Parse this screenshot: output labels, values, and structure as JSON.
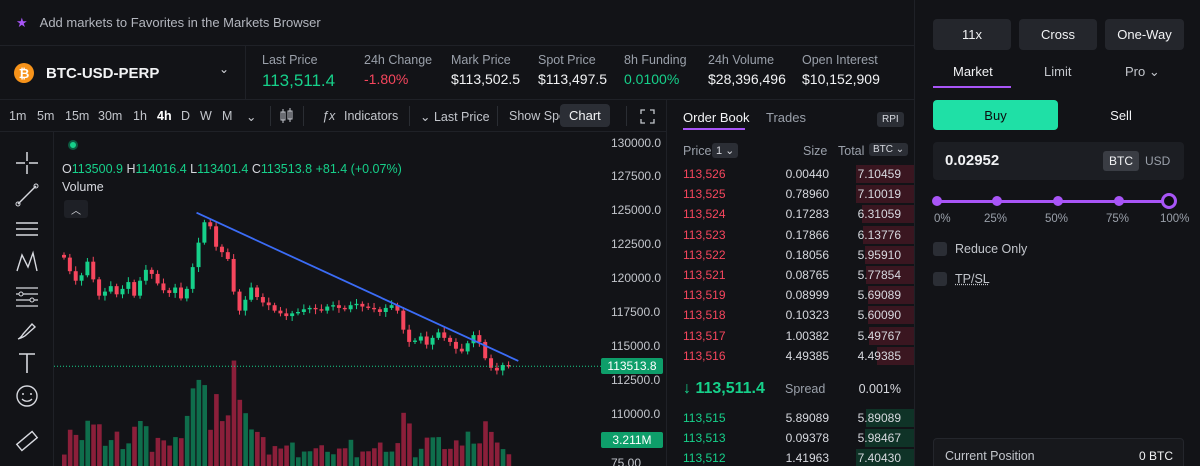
{
  "banner": {
    "text": "Add markets to Favorites in the Markets Browser",
    "icon": "star-icon"
  },
  "market": {
    "symbol": "BTC-USD-PERP",
    "coin_letter": "₿"
  },
  "stats": [
    {
      "label": "Last Price",
      "value": "113,511.4",
      "color": "#16d08a"
    },
    {
      "label": "24h Change",
      "value": "-1.80%",
      "color": "#f6465d"
    },
    {
      "label": "Mark Price",
      "value": "$113,502.5",
      "color": "#f2f3f5"
    },
    {
      "label": "Spot Price",
      "value": "$113,497.5",
      "color": "#f2f3f5"
    },
    {
      "label": "8h Funding",
      "value": "0.0100%",
      "color": "#16d08a"
    },
    {
      "label": "24h Volume",
      "value": "$28,396,496",
      "color": "#f2f3f5"
    },
    {
      "label": "Open Interest",
      "value": "$10,152,909",
      "color": "#f2f3f5"
    }
  ],
  "toolbar": {
    "timeframes": [
      "1m",
      "5m",
      "15m",
      "30m",
      "1h",
      "4h",
      "D",
      "W",
      "M"
    ],
    "active_timeframe": "4h",
    "indicators": "Indicators",
    "last_price": "Last Price",
    "show_spot": "Show Spo",
    "chart_tooltip": "Chart"
  },
  "ohlc": {
    "o_label": "O",
    "o": "113500.9",
    "h_label": "H",
    "h": "114016.4",
    "l_label": "L",
    "l": "113401.4",
    "c_label": "C",
    "c": "113513.8",
    "change": "+81.4 (+0.07%)",
    "volume_label": "Volume"
  },
  "y_axis": {
    "labels": [
      "130000.0",
      "127500.0",
      "125000.0",
      "122500.0",
      "120000.0",
      "117500.0",
      "115000.0",
      "112500.0",
      "110000.0",
      "75.00"
    ],
    "current_price": "113513.8",
    "current_volume": "3.211M"
  },
  "chart_data": {
    "type": "candlestick",
    "ylim": [
      110000,
      130000
    ],
    "closes": [
      121500,
      120500,
      119800,
      120200,
      121200,
      119900,
      118700,
      119000,
      119400,
      118800,
      119200,
      119700,
      118700,
      119800,
      120600,
      120300,
      119600,
      119100,
      118900,
      119300,
      118500,
      119200,
      120800,
      122600,
      124100,
      123800,
      122300,
      121900,
      121400,
      119000,
      117600,
      118400,
      119300,
      118600,
      118200,
      118000,
      117600,
      117400,
      117200,
      117400,
      117500,
      117700,
      117800,
      117700,
      117600,
      117900,
      118000,
      117800,
      117700,
      118000,
      118100,
      117900,
      117800,
      117700,
      117500,
      117800,
      118000,
      117600,
      116200,
      115300,
      115400,
      115700,
      115100,
      115600,
      116000,
      115600,
      115300,
      114800,
      114600,
      115200,
      115800,
      115300,
      114100,
      113400,
      113200,
      113600,
      113500
    ],
    "trendline": [
      [
        23,
        124800
      ],
      [
        78,
        113900
      ]
    ],
    "volume_ylim": [
      0,
      75
    ]
  },
  "orderbook": {
    "tabs": [
      "Order Book",
      "Trades"
    ],
    "active_tab": "Order Book",
    "rpi": "RPI",
    "price_header": "Price",
    "precision": "1",
    "size_header": "Size",
    "total_header": "Total",
    "total_unit": "BTC",
    "asks": [
      {
        "price": "113,526",
        "size": "0.00440",
        "total": "7.10459",
        "depth": 0.99
      },
      {
        "price": "113,525",
        "size": "0.78960",
        "total": "7.10019",
        "depth": 0.99
      },
      {
        "price": "113,524",
        "size": "0.17283",
        "total": "6.31059",
        "depth": 0.88
      },
      {
        "price": "113,523",
        "size": "0.17866",
        "total": "6.13776",
        "depth": 0.86
      },
      {
        "price": "113,522",
        "size": "0.18056",
        "total": "5.95910",
        "depth": 0.83
      },
      {
        "price": "113,521",
        "size": "0.08765",
        "total": "5.77854",
        "depth": 0.81
      },
      {
        "price": "113,519",
        "size": "0.08999",
        "total": "5.69089",
        "depth": 0.79
      },
      {
        "price": "113,518",
        "size": "0.10323",
        "total": "5.60090",
        "depth": 0.78
      },
      {
        "price": "113,517",
        "size": "1.00382",
        "total": "5.49767",
        "depth": 0.77
      },
      {
        "price": "113,516",
        "size": "4.49385",
        "total": "4.49385",
        "depth": 0.63
      }
    ],
    "mid_price": "113,511.4",
    "spread_label": "Spread",
    "spread_value": "0.001%",
    "bids": [
      {
        "price": "113,515",
        "size": "5.89089",
        "total": "5.89089",
        "depth": 0.82
      },
      {
        "price": "113,513",
        "size": "0.09378",
        "total": "5.98467",
        "depth": 0.84
      },
      {
        "price": "113,512",
        "size": "1.41963",
        "total": "7.40430",
        "depth": 0.99
      }
    ]
  },
  "trade": {
    "leverage": "11x",
    "margin_mode": "Cross",
    "position_mode": "One-Way",
    "order_types": [
      "Market",
      "Limit",
      "Pro"
    ],
    "active_order_type": "Market",
    "buy": "Buy",
    "sell": "Sell",
    "amount": "0.02952",
    "unit_btc": "BTC",
    "unit_usd": "USD",
    "slider_percent": 100,
    "slider_marks": [
      "0%",
      "25%",
      "50%",
      "75%",
      "100%"
    ],
    "reduce_only": "Reduce Only",
    "tp_sl": "TP/SL",
    "current_position_label": "Current Position",
    "current_position_value": "0 BTC"
  }
}
